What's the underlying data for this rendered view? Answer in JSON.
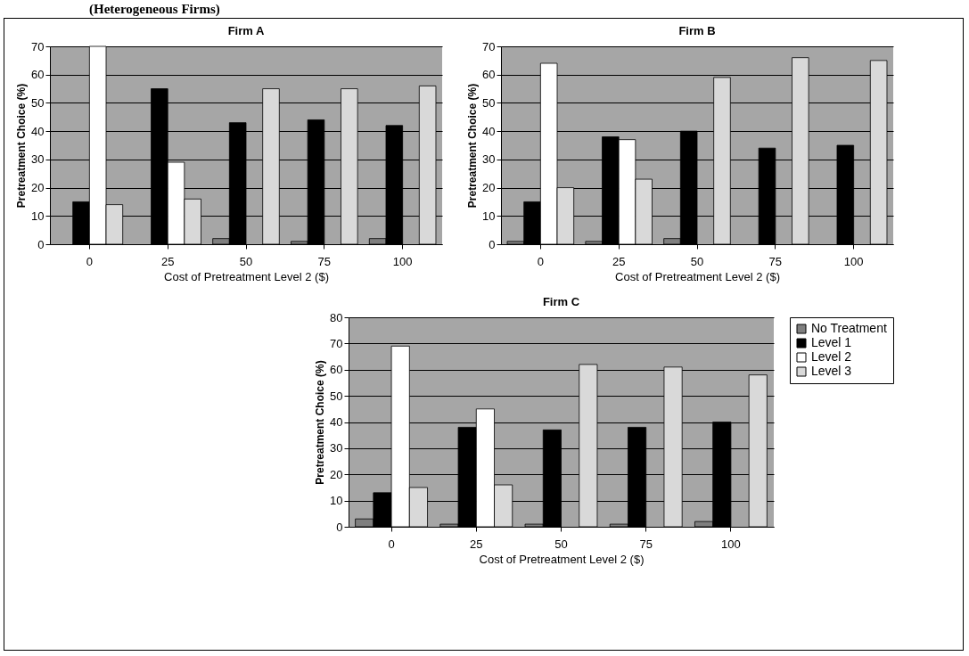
{
  "chart_data": [
    {
      "type": "bar",
      "title": "Firm A",
      "annotations": [
        "(Heterogeneous Firms)"
      ],
      "xlabel": "Cost of Pretreatment Level 2 ($)",
      "ylabel": "Pretreatment Choice (%)",
      "categories": [
        "0",
        "25",
        "50",
        "75",
        "100"
      ],
      "ylim": [
        0,
        70
      ],
      "yticks": [
        0,
        10,
        20,
        30,
        40,
        50,
        60,
        70
      ],
      "grid": "y",
      "legend": false,
      "series": [
        {
          "color": "#7f7f7f",
          "values": [
            null,
            null,
            2,
            1,
            2
          ]
        },
        {
          "color": "#000000",
          "values": [
            15,
            55,
            43,
            44,
            42
          ]
        },
        {
          "color": "#ffffff",
          "values": [
            70,
            29,
            null,
            null,
            null
          ]
        },
        {
          "color": "#d9d9d9",
          "values": [
            14,
            16,
            55,
            55,
            56
          ]
        }
      ]
    },
    {
      "type": "bar",
      "title": "Firm B",
      "xlabel": "Cost of Pretreatment Level 2 ($)",
      "ylabel": "Pretreatment Choice (%)",
      "categories": [
        "0",
        "25",
        "50",
        "75",
        "100"
      ],
      "ylim": [
        0,
        70
      ],
      "yticks": [
        0,
        10,
        20,
        30,
        40,
        50,
        60,
        70
      ],
      "grid": "y",
      "legend": false,
      "series": [
        {
          "color": "#7f7f7f",
          "values": [
            1,
            1,
            2,
            null,
            null
          ]
        },
        {
          "color": "#000000",
          "values": [
            15,
            38,
            40,
            34,
            35
          ]
        },
        {
          "color": "#ffffff",
          "values": [
            64,
            37,
            null,
            null,
            null
          ]
        },
        {
          "color": "#d9d9d9",
          "values": [
            20,
            23,
            59,
            66,
            65
          ]
        }
      ]
    },
    {
      "type": "bar",
      "title": "Firm C",
      "xlabel": "Cost of Pretreatment Level 2 ($)",
      "ylabel": "Pretreatment Choice (%)",
      "categories": [
        "0",
        "25",
        "50",
        "75",
        "100"
      ],
      "ylim": [
        0,
        80
      ],
      "yticks": [
        0,
        10,
        20,
        30,
        40,
        50,
        60,
        70,
        80
      ],
      "grid": "y",
      "legend": "right",
      "series": [
        {
          "name": "No Treatment",
          "color": "#7f7f7f",
          "values": [
            3,
            1,
            1,
            1,
            2
          ]
        },
        {
          "name": "Level 1",
          "color": "#000000",
          "values": [
            13,
            38,
            37,
            38,
            40
          ]
        },
        {
          "name": "Level 2",
          "color": "#ffffff",
          "values": [
            69,
            45,
            null,
            null,
            null
          ]
        },
        {
          "name": "Level 3",
          "color": "#d9d9d9",
          "values": [
            15,
            16,
            62,
            61,
            58
          ]
        }
      ]
    }
  ]
}
